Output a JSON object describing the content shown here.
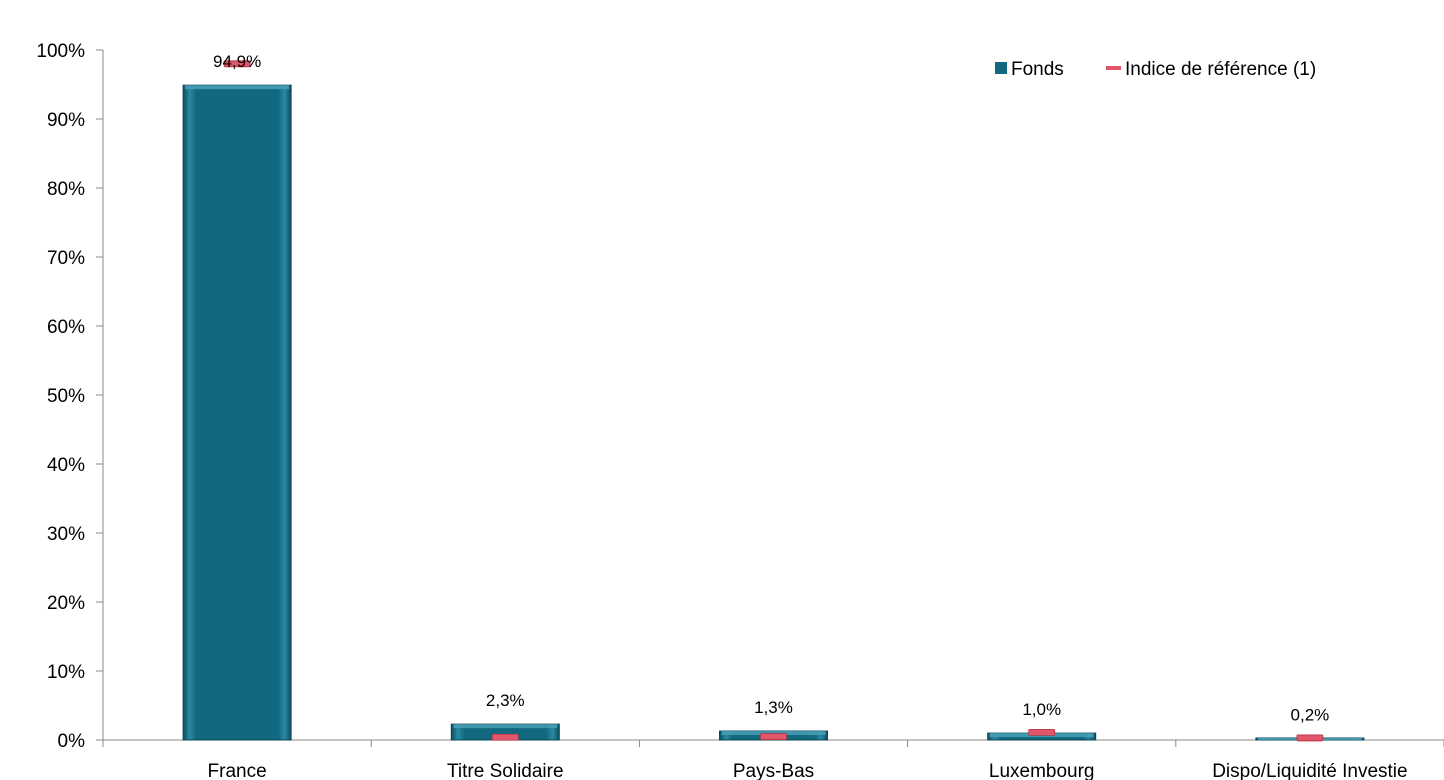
{
  "chart_data": {
    "type": "bar",
    "categories": [
      "France",
      "Titre Solidaire",
      "Pays-Bas",
      "Luxembourg",
      "Dispo/Liquidité Investie"
    ],
    "series": [
      {
        "name": "Fonds",
        "values": [
          94.9,
          2.3,
          1.3,
          1.0,
          0.2
        ],
        "data_labels": [
          "94,9%",
          "2,3%",
          "1,3%",
          "1,0%",
          "0,2%"
        ],
        "color": "#12687f"
      },
      {
        "name": "Indice de référence (1)",
        "values": [
          98.0,
          0.4,
          0.5,
          1.1,
          0.3
        ],
        "color": "#e0566a",
        "marker": "dash"
      }
    ],
    "ylim": [
      0,
      100
    ],
    "yticks": [
      0,
      10,
      20,
      30,
      40,
      50,
      60,
      70,
      80,
      90,
      100
    ],
    "ytick_labels": [
      "0%",
      "10%",
      "20%",
      "30%",
      "40%",
      "50%",
      "60%",
      "70%",
      "80%",
      "90%",
      "100%"
    ],
    "grid": false,
    "legend_position": "top-right"
  }
}
